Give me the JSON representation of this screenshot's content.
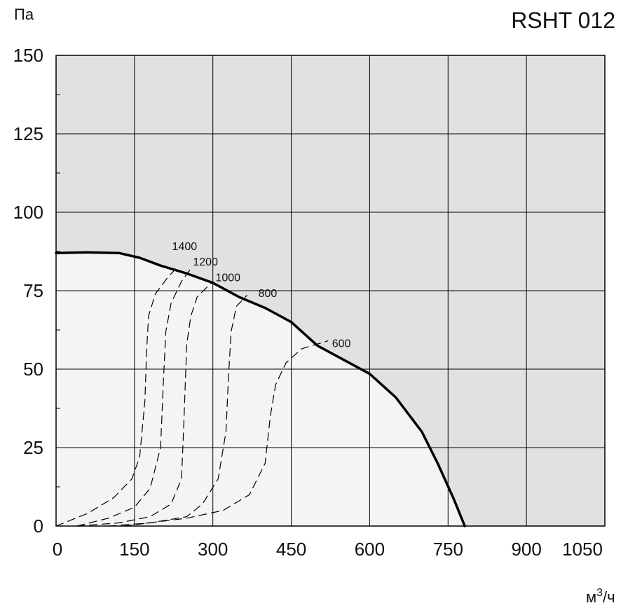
{
  "chart_data": {
    "type": "line",
    "title": "RSHT 012",
    "ylabel": "Па",
    "xlabel_base": "м",
    "xlabel_sup": "3",
    "xlabel_tail": "/ч",
    "xlim": [
      0,
      1050
    ],
    "ylim": [
      0,
      150
    ],
    "x_ticks": [
      0,
      150,
      300,
      450,
      600,
      750,
      900,
      1050
    ],
    "x_tick_labels": [
      "0",
      "150",
      "300",
      "450",
      "600",
      "750",
      "900",
      "1050"
    ],
    "y_ticks": [
      0,
      25,
      50,
      75,
      100,
      125,
      150
    ],
    "y_tick_labels": [
      "0",
      "25",
      "50",
      "75",
      "100",
      "125",
      "150"
    ],
    "grid": true,
    "colors": {
      "operating_area": "#f4f4f4",
      "outside_area": "#e2e0e2",
      "grid": "#000000",
      "curve": "#000000"
    },
    "series": [
      {
        "style": "solid",
        "points": [
          [
            0,
            87
          ],
          [
            60,
            87.2
          ],
          [
            120,
            87
          ],
          [
            160,
            85.5
          ],
          [
            200,
            83
          ],
          [
            250,
            80.5
          ],
          [
            300,
            77.5
          ],
          [
            350,
            73
          ],
          [
            400,
            69.5
          ],
          [
            450,
            65
          ],
          [
            500,
            57.5
          ],
          [
            550,
            53
          ],
          [
            600,
            48.5
          ],
          [
            650,
            41
          ],
          [
            700,
            30
          ],
          [
            730,
            20
          ],
          [
            760,
            9
          ],
          [
            782,
            0
          ]
        ]
      },
      {
        "label": "1400",
        "label_at": [
          222,
          88
        ],
        "style": "dashed",
        "points": [
          [
            0,
            0
          ],
          [
            60,
            4
          ],
          [
            110,
            9
          ],
          [
            145,
            15
          ],
          [
            160,
            22
          ],
          [
            170,
            40
          ],
          [
            173,
            55
          ],
          [
            177,
            67
          ],
          [
            190,
            74
          ],
          [
            215,
            79.5
          ],
          [
            235,
            83
          ]
        ]
      },
      {
        "label": "1200",
        "label_at": [
          262,
          83
        ],
        "style": "dashed",
        "points": [
          [
            40,
            0
          ],
          [
            100,
            2.5
          ],
          [
            150,
            6
          ],
          [
            180,
            12
          ],
          [
            200,
            25
          ],
          [
            205,
            45
          ],
          [
            210,
            62
          ],
          [
            220,
            71
          ],
          [
            240,
            78
          ],
          [
            258,
            82
          ]
        ]
      },
      {
        "label": "1000",
        "label_at": [
          305,
          78
        ],
        "style": "dashed",
        "points": [
          [
            40,
            0
          ],
          [
            120,
            1
          ],
          [
            180,
            3
          ],
          [
            220,
            7
          ],
          [
            240,
            15
          ],
          [
            245,
            35
          ],
          [
            250,
            58
          ],
          [
            258,
            67
          ],
          [
            270,
            73
          ],
          [
            300,
            78
          ]
        ]
      },
      {
        "label": "800",
        "label_at": [
          387,
          73
        ],
        "style": "dashed",
        "points": [
          [
            100,
            0
          ],
          [
            180,
            1
          ],
          [
            250,
            3
          ],
          [
            280,
            7
          ],
          [
            310,
            15
          ],
          [
            325,
            30
          ],
          [
            330,
            48
          ],
          [
            335,
            62
          ],
          [
            345,
            70
          ],
          [
            365,
            73.5
          ]
        ]
      },
      {
        "label": "600",
        "label_at": [
          528,
          57
        ],
        "style": "dashed",
        "points": [
          [
            130,
            0
          ],
          [
            250,
            2.5
          ],
          [
            320,
            5
          ],
          [
            370,
            10
          ],
          [
            400,
            20
          ],
          [
            410,
            35
          ],
          [
            420,
            45
          ],
          [
            440,
            52
          ],
          [
            470,
            56.5
          ],
          [
            520,
            59
          ]
        ]
      }
    ]
  }
}
